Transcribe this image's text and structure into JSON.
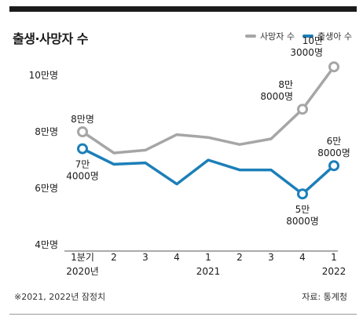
{
  "title": "출생·사망자 수",
  "legend": {
    "deaths_label": "사망자 수",
    "births_label": "출생아 수"
  },
  "colors": {
    "deaths": "#a6a6a6",
    "births": "#1c7fb8",
    "text": "#1a1a1a"
  },
  "footnote": "※2021, 2022년 잠정치",
  "source": "자료: 통계청",
  "chart_data": {
    "type": "line",
    "categories": [
      "1분기",
      "2",
      "3",
      "4",
      "1",
      "2",
      "3",
      "4",
      "1"
    ],
    "year_labels": [
      {
        "index": 0,
        "label": "2020년"
      },
      {
        "index": 4,
        "label": "2021"
      },
      {
        "index": 8,
        "label": "2022"
      }
    ],
    "series": [
      {
        "name": "사망자 수",
        "values": [
          80000,
          72500,
          73500,
          79000,
          78000,
          75500,
          77500,
          88000,
          103000
        ]
      },
      {
        "name": "출생아 수",
        "values": [
          74000,
          68500,
          69000,
          61500,
          70000,
          66500,
          66500,
          58000,
          68000
        ]
      }
    ],
    "yticks": [
      {
        "value": 40000,
        "label": "4만명"
      },
      {
        "value": 60000,
        "label": "6만명"
      },
      {
        "value": 80000,
        "label": "8만명"
      },
      {
        "value": 100000,
        "label": "10만명"
      }
    ],
    "ylim": [
      40000,
      110000
    ],
    "annotations": [
      {
        "series": 0,
        "index": 0,
        "lines": [
          "8만명"
        ],
        "pos": "above"
      },
      {
        "series": 1,
        "index": 0,
        "lines": [
          "7만",
          "4000명"
        ],
        "pos": "below"
      },
      {
        "series": 0,
        "index": 7,
        "lines": [
          "8만",
          "8000명"
        ],
        "pos": "left"
      },
      {
        "series": 1,
        "index": 7,
        "lines": [
          "5만",
          "8000명"
        ],
        "pos": "below"
      },
      {
        "series": 0,
        "index": 8,
        "lines": [
          "10만",
          "3000명"
        ],
        "pos": "upleft"
      },
      {
        "series": 1,
        "index": 8,
        "lines": [
          "6만",
          "8000명"
        ],
        "pos": "above"
      }
    ],
    "grid": false
  }
}
